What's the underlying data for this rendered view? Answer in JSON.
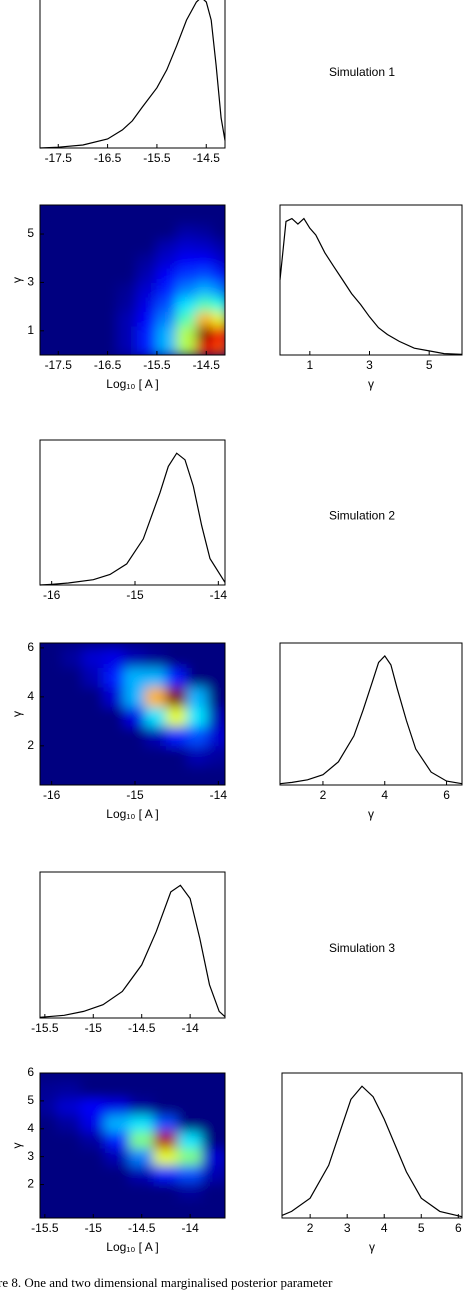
{
  "chart_data": [
    {
      "type": "line",
      "title": "Simulation 1",
      "x": [
        -17.87,
        -17.5,
        -17,
        -16.5,
        -16.2,
        -16,
        -15.8,
        -15.5,
        -15.3,
        -15.1,
        -14.9,
        -14.7,
        -14.6,
        -14.5,
        -14.4,
        -14.3,
        -14.2,
        -14.12
      ],
      "values": [
        0,
        0.005,
        0.02,
        0.06,
        0.12,
        0.18,
        0.27,
        0.4,
        0.52,
        0.68,
        0.85,
        0.97,
        1.0,
        0.97,
        0.85,
        0.55,
        0.2,
        0.05
      ],
      "xlim": [
        -17.87,
        -14.12
      ],
      "ylim": [
        0,
        1.05
      ],
      "xticks": [
        -17.5,
        -16.5,
        -15.5,
        -14.5
      ],
      "color": "#000000"
    },
    {
      "type": "heatmap",
      "xlabel": "Log₁₀ [ A ]",
      "ylabel": "γ",
      "x": [
        -17.7,
        -17.3,
        -16.9,
        -16.5,
        -16.1,
        -15.7,
        -15.3,
        -14.9,
        -14.5,
        -14.2
      ],
      "y": [
        0.3,
        0.9,
        1.5,
        2.1,
        2.7,
        3.3,
        3.9,
        4.5,
        5.1,
        5.7
      ],
      "z": [
        [
          0,
          0,
          0,
          0,
          0.05,
          0.15,
          0.3,
          0.55,
          0.9,
          0.8
        ],
        [
          0,
          0,
          0,
          0,
          0.05,
          0.15,
          0.3,
          0.55,
          1.0,
          0.85
        ],
        [
          0,
          0,
          0,
          0,
          0.05,
          0.12,
          0.25,
          0.45,
          0.7,
          0.6
        ],
        [
          0,
          0,
          0,
          0,
          0.03,
          0.1,
          0.2,
          0.35,
          0.45,
          0.4
        ],
        [
          0,
          0,
          0,
          0,
          0.02,
          0.08,
          0.15,
          0.25,
          0.3,
          0.25
        ],
        [
          0,
          0,
          0,
          0,
          0,
          0.05,
          0.12,
          0.18,
          0.2,
          0.15
        ],
        [
          0,
          0,
          0,
          0,
          0,
          0.03,
          0.08,
          0.12,
          0.12,
          0.08
        ],
        [
          0,
          0,
          0,
          0,
          0,
          0,
          0.05,
          0.08,
          0.07,
          0.04
        ],
        [
          0,
          0,
          0,
          0,
          0,
          0,
          0,
          0.04,
          0.03,
          0
        ],
        [
          0,
          0,
          0,
          0,
          0,
          0,
          0,
          0,
          0,
          0
        ]
      ],
      "xlim": [
        -17.87,
        -14.12
      ],
      "ylim": [
        0,
        6.2
      ],
      "xticks": [
        -17.5,
        -16.5,
        -15.5,
        -14.5
      ],
      "yticks": [
        1,
        3,
        5
      ],
      "colormap": "jet"
    },
    {
      "type": "line",
      "xlabel": "γ",
      "x": [
        0,
        0.2,
        0.4,
        0.6,
        0.8,
        1.0,
        1.2,
        1.5,
        1.8,
        2.1,
        2.4,
        2.7,
        3.0,
        3.3,
        3.6,
        4.0,
        4.5,
        5.0,
        5.5,
        6.1
      ],
      "values": [
        0.55,
        0.98,
        1.0,
        0.96,
        1.0,
        0.93,
        0.88,
        0.75,
        0.65,
        0.55,
        0.45,
        0.37,
        0.28,
        0.2,
        0.15,
        0.1,
        0.05,
        0.03,
        0.01,
        0.005
      ],
      "xlim": [
        0,
        6.1
      ],
      "ylim": [
        0,
        1.1
      ],
      "xticks": [
        1,
        3,
        5
      ],
      "color": "#000000"
    },
    {
      "type": "line",
      "title": "Simulation 2",
      "x": [
        -16.14,
        -16,
        -15.8,
        -15.5,
        -15.3,
        -15.1,
        -14.9,
        -14.7,
        -14.6,
        -14.5,
        -14.4,
        -14.3,
        -14.2,
        -14.1,
        -13.92
      ],
      "values": [
        0,
        0.005,
        0.015,
        0.04,
        0.08,
        0.16,
        0.35,
        0.7,
        0.9,
        1.0,
        0.95,
        0.75,
        0.45,
        0.2,
        0.02
      ],
      "xlim": [
        -16.14,
        -13.92
      ],
      "ylim": [
        0,
        1.1
      ],
      "xticks": [
        -16,
        -15,
        -14
      ],
      "color": "#000000"
    },
    {
      "type": "heatmap",
      "xlabel": "Log₁₀ [ A ]",
      "ylabel": "γ",
      "x": [
        -16.0,
        -15.75,
        -15.5,
        -15.25,
        -15.0,
        -14.75,
        -14.5,
        -14.25,
        -14.0
      ],
      "y": [
        0.8,
        1.6,
        2.4,
        3.2,
        4.0,
        4.8,
        5.6
      ],
      "z": [
        [
          0,
          0,
          0,
          0,
          0,
          0,
          0,
          0,
          0
        ],
        [
          0,
          0,
          0,
          0,
          0,
          0,
          0,
          0.05,
          0.03
        ],
        [
          0,
          0,
          0,
          0,
          0,
          0.05,
          0.15,
          0.2,
          0.08
        ],
        [
          0,
          0,
          0,
          0,
          0.1,
          0.35,
          0.6,
          0.35,
          0.05
        ],
        [
          0,
          0,
          0,
          0.08,
          0.3,
          0.7,
          1.0,
          0.3,
          0
        ],
        [
          0,
          0,
          0.05,
          0.15,
          0.3,
          0.3,
          0.15,
          0,
          0
        ],
        [
          0,
          0.03,
          0.08,
          0.1,
          0.05,
          0.02,
          0,
          0,
          0
        ]
      ],
      "xlim": [
        -16.14,
        -13.92
      ],
      "ylim": [
        0.4,
        6.2
      ],
      "xticks": [
        -16,
        -15,
        -14
      ],
      "yticks": [
        2,
        4,
        6
      ],
      "colormap": "jet"
    },
    {
      "type": "line",
      "xlabel": "γ",
      "x": [
        0.61,
        1,
        1.5,
        2,
        2.5,
        3,
        3.3,
        3.6,
        3.8,
        4.0,
        4.2,
        4.4,
        4.7,
        5,
        5.5,
        6,
        6.5
      ],
      "values": [
        0.01,
        0.02,
        0.04,
        0.08,
        0.18,
        0.38,
        0.58,
        0.8,
        0.95,
        1.0,
        0.93,
        0.75,
        0.5,
        0.28,
        0.1,
        0.03,
        0.01
      ],
      "xlim": [
        0.61,
        6.5
      ],
      "ylim": [
        0,
        1.1
      ],
      "xticks": [
        2,
        4,
        6
      ],
      "color": "#000000"
    },
    {
      "type": "line",
      "title": "Simulation 3",
      "x": [
        -15.55,
        -15.3,
        -15.1,
        -14.9,
        -14.7,
        -14.5,
        -14.35,
        -14.2,
        -14.1,
        -14.0,
        -13.9,
        -13.8,
        -13.7,
        -13.64
      ],
      "values": [
        0.005,
        0.02,
        0.05,
        0.1,
        0.2,
        0.4,
        0.65,
        0.95,
        1.0,
        0.9,
        0.6,
        0.25,
        0.05,
        0.01
      ],
      "xlim": [
        -15.55,
        -13.64
      ],
      "ylim": [
        0,
        1.1
      ],
      "xticks": [
        -15.5,
        -15,
        -14.5,
        -14
      ],
      "color": "#000000"
    },
    {
      "type": "heatmap",
      "xlabel": "Log₁₀ [ A ]",
      "ylabel": "γ",
      "x": [
        -15.5,
        -15.25,
        -15.0,
        -14.75,
        -14.5,
        -14.25,
        -14.0,
        -13.75
      ],
      "y": [
        1.2,
        1.8,
        2.4,
        3.0,
        3.6,
        4.2,
        4.8,
        5.4
      ],
      "z": [
        [
          0,
          0,
          0,
          0,
          0,
          0,
          0,
          0
        ],
        [
          0,
          0,
          0,
          0,
          0,
          0,
          0.03,
          0
        ],
        [
          0,
          0,
          0,
          0,
          0.05,
          0.15,
          0.2,
          0.05
        ],
        [
          0,
          0,
          0,
          0.05,
          0.25,
          0.6,
          0.5,
          0.08
        ],
        [
          0,
          0,
          0.03,
          0.15,
          0.5,
          0.95,
          0.35,
          0
        ],
        [
          0,
          0.03,
          0.1,
          0.3,
          0.35,
          0.2,
          0,
          0
        ],
        [
          0.03,
          0.08,
          0.12,
          0.1,
          0.03,
          0,
          0,
          0
        ],
        [
          0.02,
          0.03,
          0,
          0,
          0,
          0,
          0,
          0
        ]
      ],
      "xlim": [
        -15.55,
        -13.64
      ],
      "ylim": [
        0.8,
        6.0
      ],
      "xticks": [
        -15.5,
        -15,
        -14.5,
        -14
      ],
      "yticks": [
        2,
        3,
        4,
        5,
        6
      ],
      "colormap": "jet"
    },
    {
      "type": "line",
      "xlabel": "γ",
      "x": [
        1.24,
        1.5,
        2,
        2.5,
        2.8,
        3.1,
        3.4,
        3.7,
        4.0,
        4.3,
        4.6,
        5,
        5.5,
        6.1
      ],
      "values": [
        0.02,
        0.05,
        0.15,
        0.4,
        0.65,
        0.9,
        1.0,
        0.92,
        0.75,
        0.55,
        0.35,
        0.15,
        0.05,
        0.01
      ],
      "xlim": [
        1.24,
        6.1
      ],
      "ylim": [
        0,
        1.1
      ],
      "xticks": [
        2,
        3,
        4,
        5,
        6
      ],
      "color": "#000000"
    }
  ],
  "caption": "re 8.  One and two dimensional marginalised posterior parameter"
}
